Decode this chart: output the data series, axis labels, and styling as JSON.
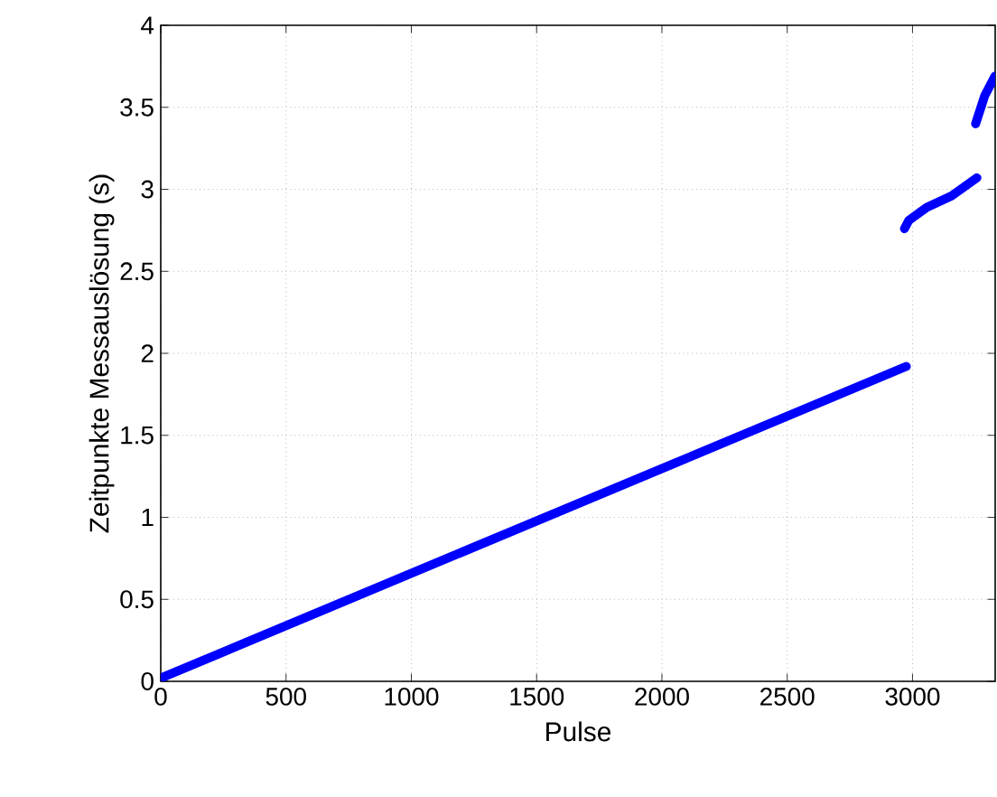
{
  "chart_data": {
    "type": "line",
    "xlabel": "Pulse",
    "ylabel": "Zeitpunkte Messauslösung (s)",
    "x": [
      0,
      2975,
      null,
      2968,
      2985,
      3057,
      3156,
      3257,
      null,
      3252,
      3288,
      3329
    ],
    "series": [
      {
        "color": "#0000ff",
        "values": [
          0.02,
          1.92,
          null,
          2.76,
          2.81,
          2.89,
          2.96,
          3.07,
          null,
          3.4,
          3.57,
          3.69
        ]
      }
    ],
    "xlim": [
      0,
      3330
    ],
    "ylim": [
      0,
      4
    ],
    "xticks": [
      0,
      500,
      1000,
      1500,
      2000,
      2500,
      3000
    ],
    "yticks": [
      0,
      0.5,
      1,
      1.5,
      2,
      2.5,
      3,
      3.5,
      4
    ],
    "grid": true
  }
}
